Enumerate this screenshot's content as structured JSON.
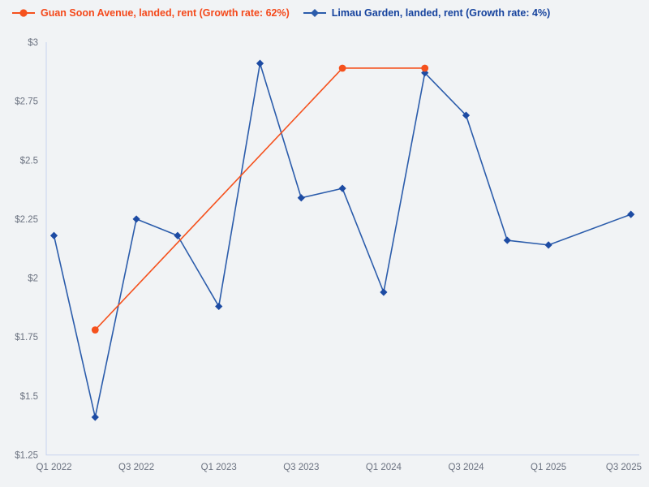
{
  "page": {
    "background": "#f1f3f5"
  },
  "legend": {
    "position": "top-left",
    "items": [
      {
        "label": "Guan Soon Avenue, landed, rent (Growth rate: 62%)",
        "marker": "circle",
        "color": "#f5511d",
        "text_color": "#f4491b"
      },
      {
        "label": "Limau Garden, landed, rent (Growth rate: 4%)",
        "marker": "diamond",
        "color": "#2b5cab",
        "text_color": "#15429d"
      }
    ]
  },
  "chart_data": {
    "type": "line",
    "title": "",
    "xlabel": "",
    "ylabel": "",
    "currency_prefix": "$",
    "grid": false,
    "legend_position": "top-left",
    "x": [
      "Q1 2022",
      "Q2 2022",
      "Q3 2022",
      "Q4 2022",
      "Q1 2023",
      "Q2 2023",
      "Q3 2023",
      "Q4 2023",
      "Q1 2024",
      "Q2 2024",
      "Q3 2024",
      "Q4 2024",
      "Q1 2025",
      "Q2 2025",
      "Q3 2025"
    ],
    "x_tick_labels": [
      "Q1 2022",
      "Q3 2022",
      "Q1 2023",
      "Q3 2023",
      "Q1 2024",
      "Q3 2024",
      "Q1 2025",
      "Q3 2025"
    ],
    "x_tick_every": 2,
    "y_ticks": [
      1.25,
      1.5,
      1.75,
      2,
      2.25,
      2.5,
      2.75,
      3
    ],
    "y_tick_labels": [
      "$1.25",
      "$1.5",
      "$1.75",
      "$2",
      "$2.25",
      "$2.5",
      "$2.75",
      "$3"
    ],
    "ylim": [
      1.25,
      3
    ],
    "axis_color": "#c7d3ee",
    "tick_color": "#6b7280",
    "series": [
      {
        "name": "Guan Soon Avenue, landed, rent",
        "growth_rate": "62%",
        "marker": "circle",
        "color": "#f5511d",
        "marker_color": "#f5511d",
        "values": [
          null,
          1.78,
          null,
          null,
          null,
          null,
          null,
          2.89,
          null,
          2.89,
          null,
          null,
          null,
          null,
          null
        ]
      },
      {
        "name": "Limau Garden, landed, rent",
        "growth_rate": "4%",
        "marker": "diamond",
        "color": "#2b5cab",
        "marker_color": "#1d4ba3",
        "values": [
          2.18,
          1.41,
          2.25,
          2.18,
          1.88,
          2.91,
          2.34,
          2.38,
          1.94,
          2.87,
          2.69,
          2.16,
          2.14,
          null,
          2.27
        ]
      }
    ]
  }
}
